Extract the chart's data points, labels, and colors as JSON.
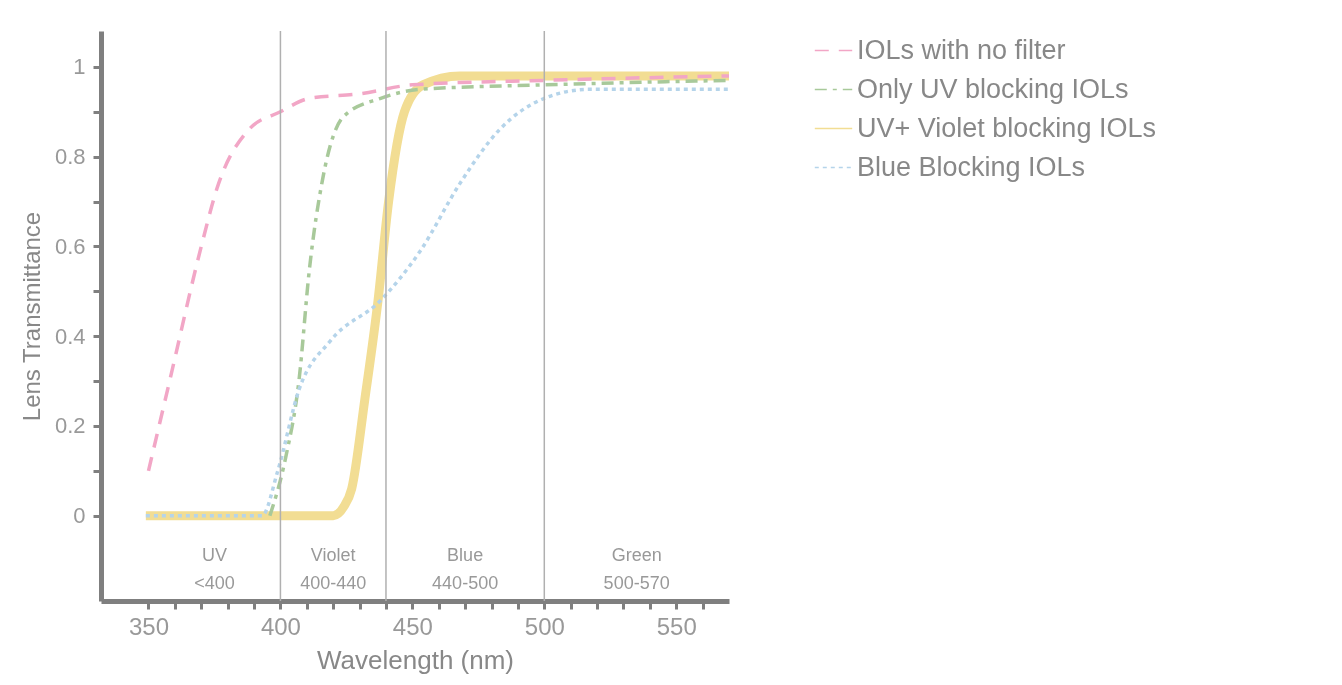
{
  "chart_data": {
    "type": "line",
    "xlabel": "Wavelength (nm)",
    "ylabel": "Lens Transmittance",
    "xlim": [
      332,
      570
    ],
    "ylim": [
      -0.19,
      1.08
    ],
    "xticks": [
      350,
      {
        "value": 360,
        "label": null
      },
      {
        "value": 370,
        "label": null
      },
      {
        "value": 380,
        "label": null
      },
      {
        "value": 390,
        "label": null
      },
      400,
      {
        "value": 410,
        "label": null
      },
      {
        "value": 420,
        "label": null
      },
      {
        "value": 430,
        "label": null
      },
      {
        "value": 440,
        "label": null
      },
      450,
      {
        "value": 460,
        "label": null
      },
      {
        "value": 470,
        "label": null
      },
      {
        "value": 480,
        "label": null
      },
      {
        "value": 490,
        "label": null
      },
      500,
      {
        "value": 510,
        "label": null
      },
      {
        "value": 520,
        "label": null
      },
      {
        "value": 530,
        "label": null
      },
      {
        "value": 540,
        "label": null
      },
      550,
      {
        "value": 560,
        "label": null
      }
    ],
    "yticks": [
      0,
      {
        "value": 0.1,
        "label": null
      },
      {
        "value": 0.2,
        "label": "0.2"
      },
      {
        "value": 0.3,
        "label": null
      },
      {
        "value": 0.4,
        "label": "0.4"
      },
      {
        "value": 0.5,
        "label": null
      },
      {
        "value": 0.6,
        "label": "0.6"
      },
      {
        "value": 0.7,
        "label": null
      },
      {
        "value": 0.8,
        "label": "0.8"
      },
      {
        "value": 0.9,
        "label": null
      },
      1
    ],
    "grid": false,
    "legend": "right",
    "series": [
      {
        "name": "IOLs with no filter",
        "color": "#f2a6c6",
        "line_style": "dashed",
        "x": [
          350,
          358,
          370,
          376,
          388,
          400,
          411,
          430,
          450,
          500,
          570
        ],
        "values": [
          0.1,
          0.3,
          0.6,
          0.73,
          0.86,
          0.9,
          0.93,
          0.94,
          0.96,
          0.97,
          0.98
        ]
      },
      {
        "name": "Only UV  blocking IOLs",
        "color": "#a8c99a",
        "line_style": "dashdot",
        "x": [
          396,
          402,
          407,
          411,
          416,
          424,
          438,
          453,
          500,
          570
        ],
        "values": [
          0,
          0.13,
          0.3,
          0.55,
          0.75,
          0.89,
          0.93,
          0.95,
          0.96,
          0.97
        ]
      },
      {
        "name": "UV+ Violet blocking IOLs",
        "color": "#f2dd93",
        "line_style": "solid",
        "x": [
          349,
          420,
          424,
          427,
          432,
          437,
          441,
          447,
          454,
          468,
          570
        ],
        "values": [
          0,
          0,
          0.02,
          0.06,
          0.26,
          0.48,
          0.7,
          0.9,
          0.96,
          0.98,
          0.98
        ]
      },
      {
        "name": "Blue Blocking IOLs",
        "color": "#b5d4ea",
        "line_style": "dotted",
        "x": [
          349,
          393,
          399,
          407,
          419,
          438,
          453,
          468,
          483,
          500,
          517,
          570
        ],
        "values": [
          0,
          0,
          0.1,
          0.28,
          0.39,
          0.48,
          0.59,
          0.74,
          0.86,
          0.93,
          0.95,
          0.95
        ]
      }
    ],
    "ref_lines": [
      {
        "axis": "x",
        "value": 400,
        "color": "#b0b0b0"
      },
      {
        "axis": "x",
        "value": 440,
        "color": "#b0b0b0"
      },
      {
        "axis": "x",
        "value": 500,
        "color": "#b0b0b0"
      }
    ],
    "annotations": [
      "UV\n<400",
      "Violet\n400-440",
      "Blue\n440-500",
      "Green\n500-570"
    ]
  }
}
